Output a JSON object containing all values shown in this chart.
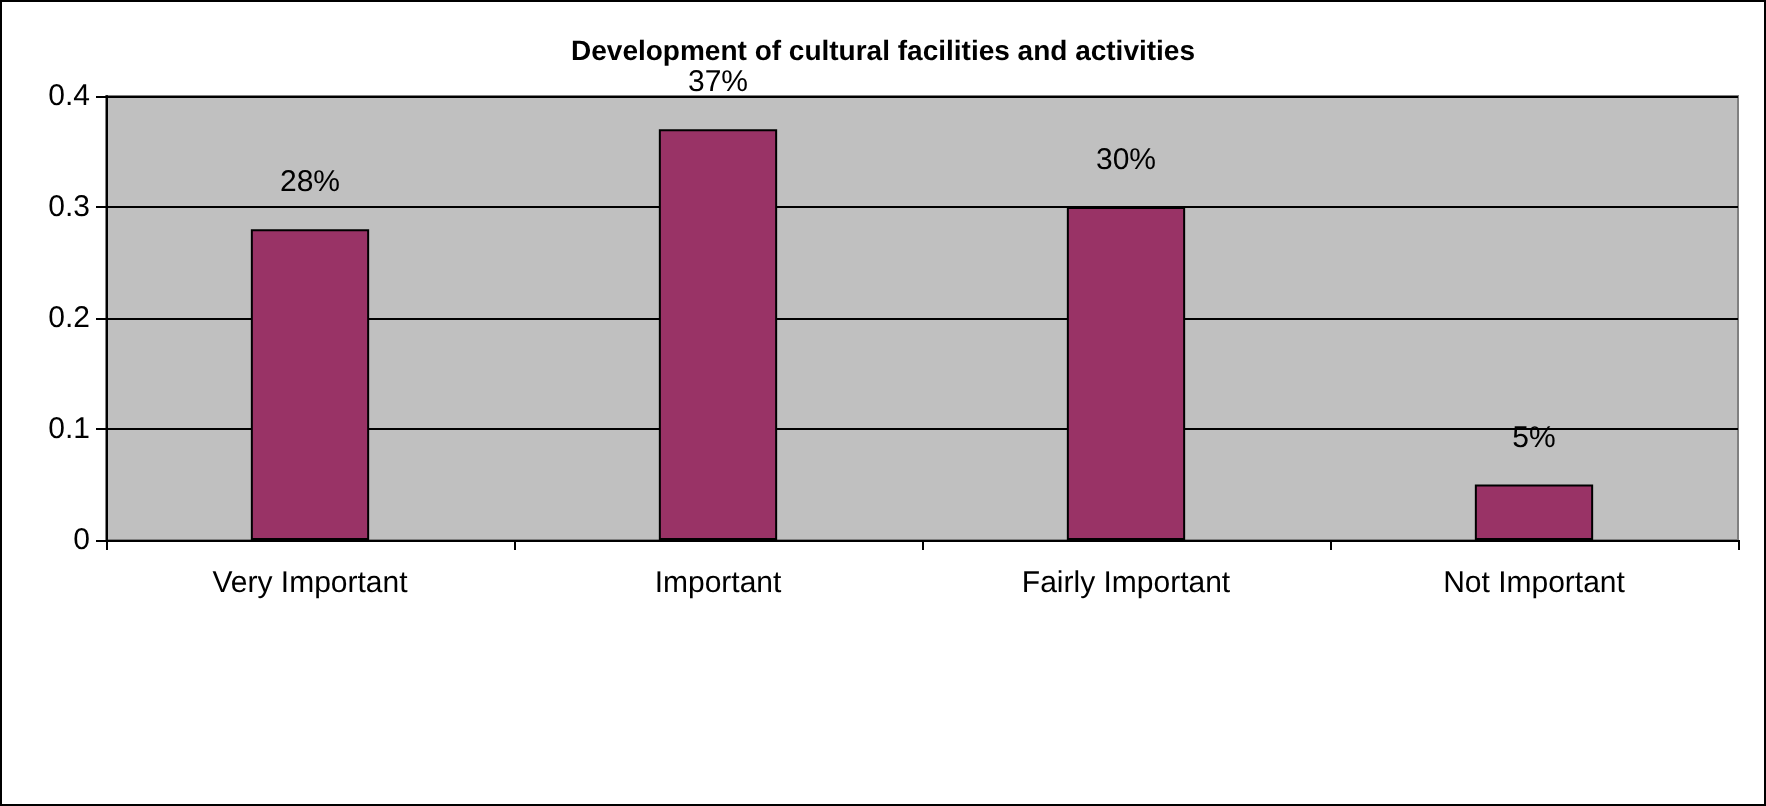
{
  "chart_data": {
    "type": "bar",
    "title": "Development of cultural facilities and activities",
    "categories": [
      "Very Important",
      "Important",
      "Fairly Important",
      "Not Important"
    ],
    "values": [
      0.28,
      0.37,
      0.3,
      0.05
    ],
    "value_labels": [
      "28%",
      "37%",
      "30%",
      "5%"
    ],
    "color": "#993366",
    "ylim": [
      0,
      0.4
    ],
    "yticks": [
      0,
      0.1,
      0.2,
      0.3,
      0.4
    ],
    "grid": "y"
  }
}
